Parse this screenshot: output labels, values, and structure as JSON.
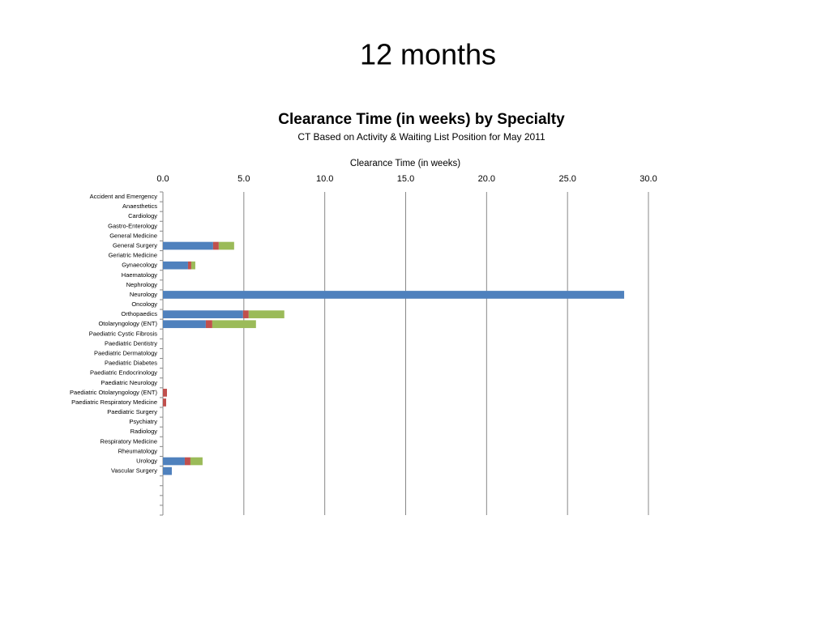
{
  "slide_title": "12 months",
  "chart_data": {
    "type": "stacked-barh",
    "title": "Clearance Time (in weeks) by Specialty",
    "subtitle": "CT Based on Activity & Waiting List Position for May 2011",
    "x_label": "Clearance Time (in weeks)",
    "categories": [
      "Accident and Emergency",
      "Anaesthetics",
      "Cardiology",
      "Gastro-Enterology",
      "General Medicine",
      "General Surgery",
      "Geriatric Medicine",
      "Gynaecology",
      "Haematology",
      "Nephrology",
      "Neurology",
      "Oncology",
      "Orthopaedics",
      "Otolaryngology (ENT)",
      "Paediatric Cystic Fibrosis",
      "Paediatric Dentistry",
      "Paediatric Dermatology",
      "Paediatric Diabetes",
      "Paediatric Endocrinology",
      "Paediatric Neurology",
      "Paediatric Otolaryngology (ENT)",
      "Paediatric Respiratory Medicine",
      "Paediatric Surgery",
      "Psychiatry",
      "Radiology",
      "Respiratory Medicine",
      "Rheumatology",
      "Urology",
      "Vascular Surgery",
      null,
      null,
      null,
      null
    ],
    "series": [
      {
        "color": "#4f81bd",
        "values": [
          0,
          0,
          0,
          0,
          0,
          3.1,
          0,
          1.55,
          0,
          0,
          28.5,
          0,
          4.95,
          2.65,
          0,
          0,
          0,
          0,
          0,
          0,
          0,
          0,
          0,
          0,
          0,
          0,
          0,
          1.35,
          0.55,
          null,
          null,
          null,
          null
        ]
      },
      {
        "color": "#c0504d",
        "values": [
          0,
          0,
          0,
          0,
          0,
          0.35,
          0,
          0.2,
          0,
          0,
          0,
          0,
          0.35,
          0.4,
          0,
          0,
          0,
          0,
          0,
          0,
          0.25,
          0.2,
          0,
          0,
          0,
          0,
          0,
          0.35,
          0,
          null,
          null,
          null,
          null
        ]
      },
      {
        "color": "#9bbb59",
        "values": [
          0,
          0,
          0,
          0,
          0,
          0.95,
          0,
          0.25,
          0,
          0,
          0,
          0,
          2.2,
          2.7,
          0,
          0,
          0,
          0,
          0,
          0,
          0,
          0,
          0,
          0,
          0,
          0,
          0,
          0.75,
          0,
          null,
          null,
          null,
          null
        ]
      }
    ],
    "xlim": [
      0,
      30
    ],
    "xticks": [
      {
        "value": 0,
        "label": "0.0"
      },
      {
        "value": 5,
        "label": "5.0"
      },
      {
        "value": 10,
        "label": "10.0"
      },
      {
        "value": 15,
        "label": "15.0"
      },
      {
        "value": 20,
        "label": "20.0"
      },
      {
        "value": 25,
        "label": "25.0"
      },
      {
        "value": 30,
        "label": "30.0"
      }
    ],
    "grid": true
  }
}
